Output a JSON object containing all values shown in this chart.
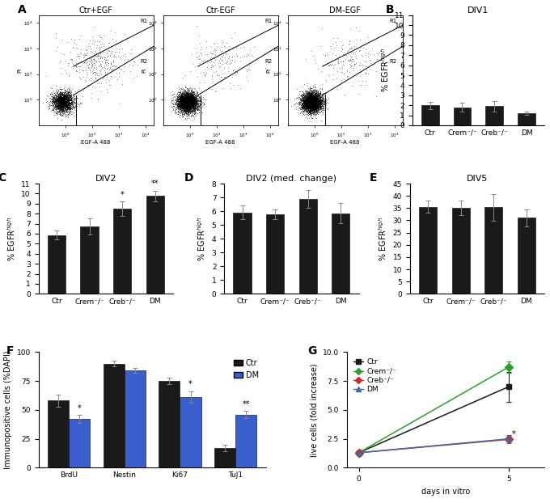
{
  "panel_B": {
    "title": "DIV1",
    "categories": [
      "Ctr",
      "Crem⁻/⁻",
      "Creb⁻/⁻",
      "DM"
    ],
    "values": [
      2.0,
      1.8,
      1.9,
      1.2
    ],
    "errors": [
      0.35,
      0.45,
      0.55,
      0.15
    ],
    "ylim": [
      0,
      11
    ],
    "yticks": [
      0,
      1,
      2,
      3,
      4,
      5,
      6,
      7,
      8,
      9,
      10,
      11
    ],
    "ylabel": "% EGFR$^{high}$"
  },
  "panel_C": {
    "title": "DIV2",
    "categories": [
      "Ctr",
      "Crem⁻/⁻",
      "Creb⁻/⁻",
      "DM"
    ],
    "values": [
      5.85,
      6.7,
      8.5,
      9.75
    ],
    "errors": [
      0.45,
      0.8,
      0.7,
      0.55
    ],
    "ylim": [
      0,
      11
    ],
    "yticks": [
      0,
      1,
      2,
      3,
      4,
      5,
      6,
      7,
      8,
      9,
      10,
      11
    ],
    "ylabel": "% EGFR$^{high}$",
    "sig": [
      "",
      "",
      "*",
      "**"
    ]
  },
  "panel_D": {
    "title": "DIV2 (med. change)",
    "categories": [
      "Ctr",
      "Crem⁻/⁻",
      "Creb⁻/⁻",
      "DM"
    ],
    "values": [
      5.9,
      5.75,
      6.9,
      5.85
    ],
    "errors": [
      0.5,
      0.35,
      0.65,
      0.75
    ],
    "ylim": [
      0,
      8
    ],
    "yticks": [
      0,
      1,
      2,
      3,
      4,
      5,
      6,
      7,
      8
    ],
    "ylabel": "% EGFR$^{high}$"
  },
  "panel_E": {
    "title": "DIV5",
    "categories": [
      "Ctr",
      "Crem⁻/⁻",
      "Creb⁻/⁻",
      "DM"
    ],
    "values": [
      35.5,
      35.2,
      35.3,
      31.0
    ],
    "errors": [
      2.5,
      3.0,
      5.5,
      3.5
    ],
    "ylim": [
      0,
      45
    ],
    "yticks": [
      0,
      5,
      10,
      15,
      20,
      25,
      30,
      35,
      40,
      45
    ],
    "ylabel": "% EGFR$^{high}$"
  },
  "panel_F": {
    "categories": [
      "BrdU",
      "Nestin",
      "Ki67",
      "TuJ1"
    ],
    "ctr_values": [
      58,
      90,
      75,
      17
    ],
    "dm_values": [
      42,
      84,
      61,
      46
    ],
    "ctr_errors": [
      5,
      2.5,
      3,
      3
    ],
    "dm_errors": [
      3.5,
      2,
      5,
      3
    ],
    "ylim": [
      0,
      100
    ],
    "yticks": [
      0,
      25,
      50,
      75,
      100
    ],
    "ylabel": "Immunopositive cells (%DAPI)",
    "sig": [
      "*",
      "",
      "*",
      "**"
    ],
    "sig_pos": [
      "dm",
      "",
      "dm",
      "dm"
    ],
    "bar_color_ctr": "#1a1a1a",
    "bar_color_dm": "#3a5fcd"
  },
  "panel_G": {
    "xlabel": "days in vitro",
    "ylabel": "live cells (fold increase)",
    "ylim": [
      0,
      10.0
    ],
    "yticks": [
      0.0,
      2.5,
      5.0,
      7.5,
      10.0
    ],
    "x": [
      0,
      5
    ],
    "series_order": [
      "Ctr",
      "Crem⁻/⁻",
      "Creb⁻/⁻",
      "DM"
    ],
    "series": {
      "Ctr": {
        "values": [
          1.3,
          7.0
        ],
        "color": "#1a1a1a",
        "marker": "s",
        "err5": 1.3
      },
      "Crem⁻/⁻": {
        "values": [
          1.3,
          8.7
        ],
        "color": "#2ca02c",
        "marker": "D",
        "err5": 0.5
      },
      "Creb⁻/⁻": {
        "values": [
          1.3,
          2.45
        ],
        "color": "#d62728",
        "marker": "D",
        "err5": 0.35
      },
      "DM": {
        "values": [
          1.3,
          2.5
        ],
        "color": "#4169a8",
        "marker": "^",
        "err5": 0.25
      }
    }
  },
  "bar_color": "#1a1a1a",
  "error_color": "#888888",
  "bg_color": "#ffffff",
  "axis_fontsize": 7,
  "title_fontsize": 8,
  "tick_fontsize": 6.5
}
